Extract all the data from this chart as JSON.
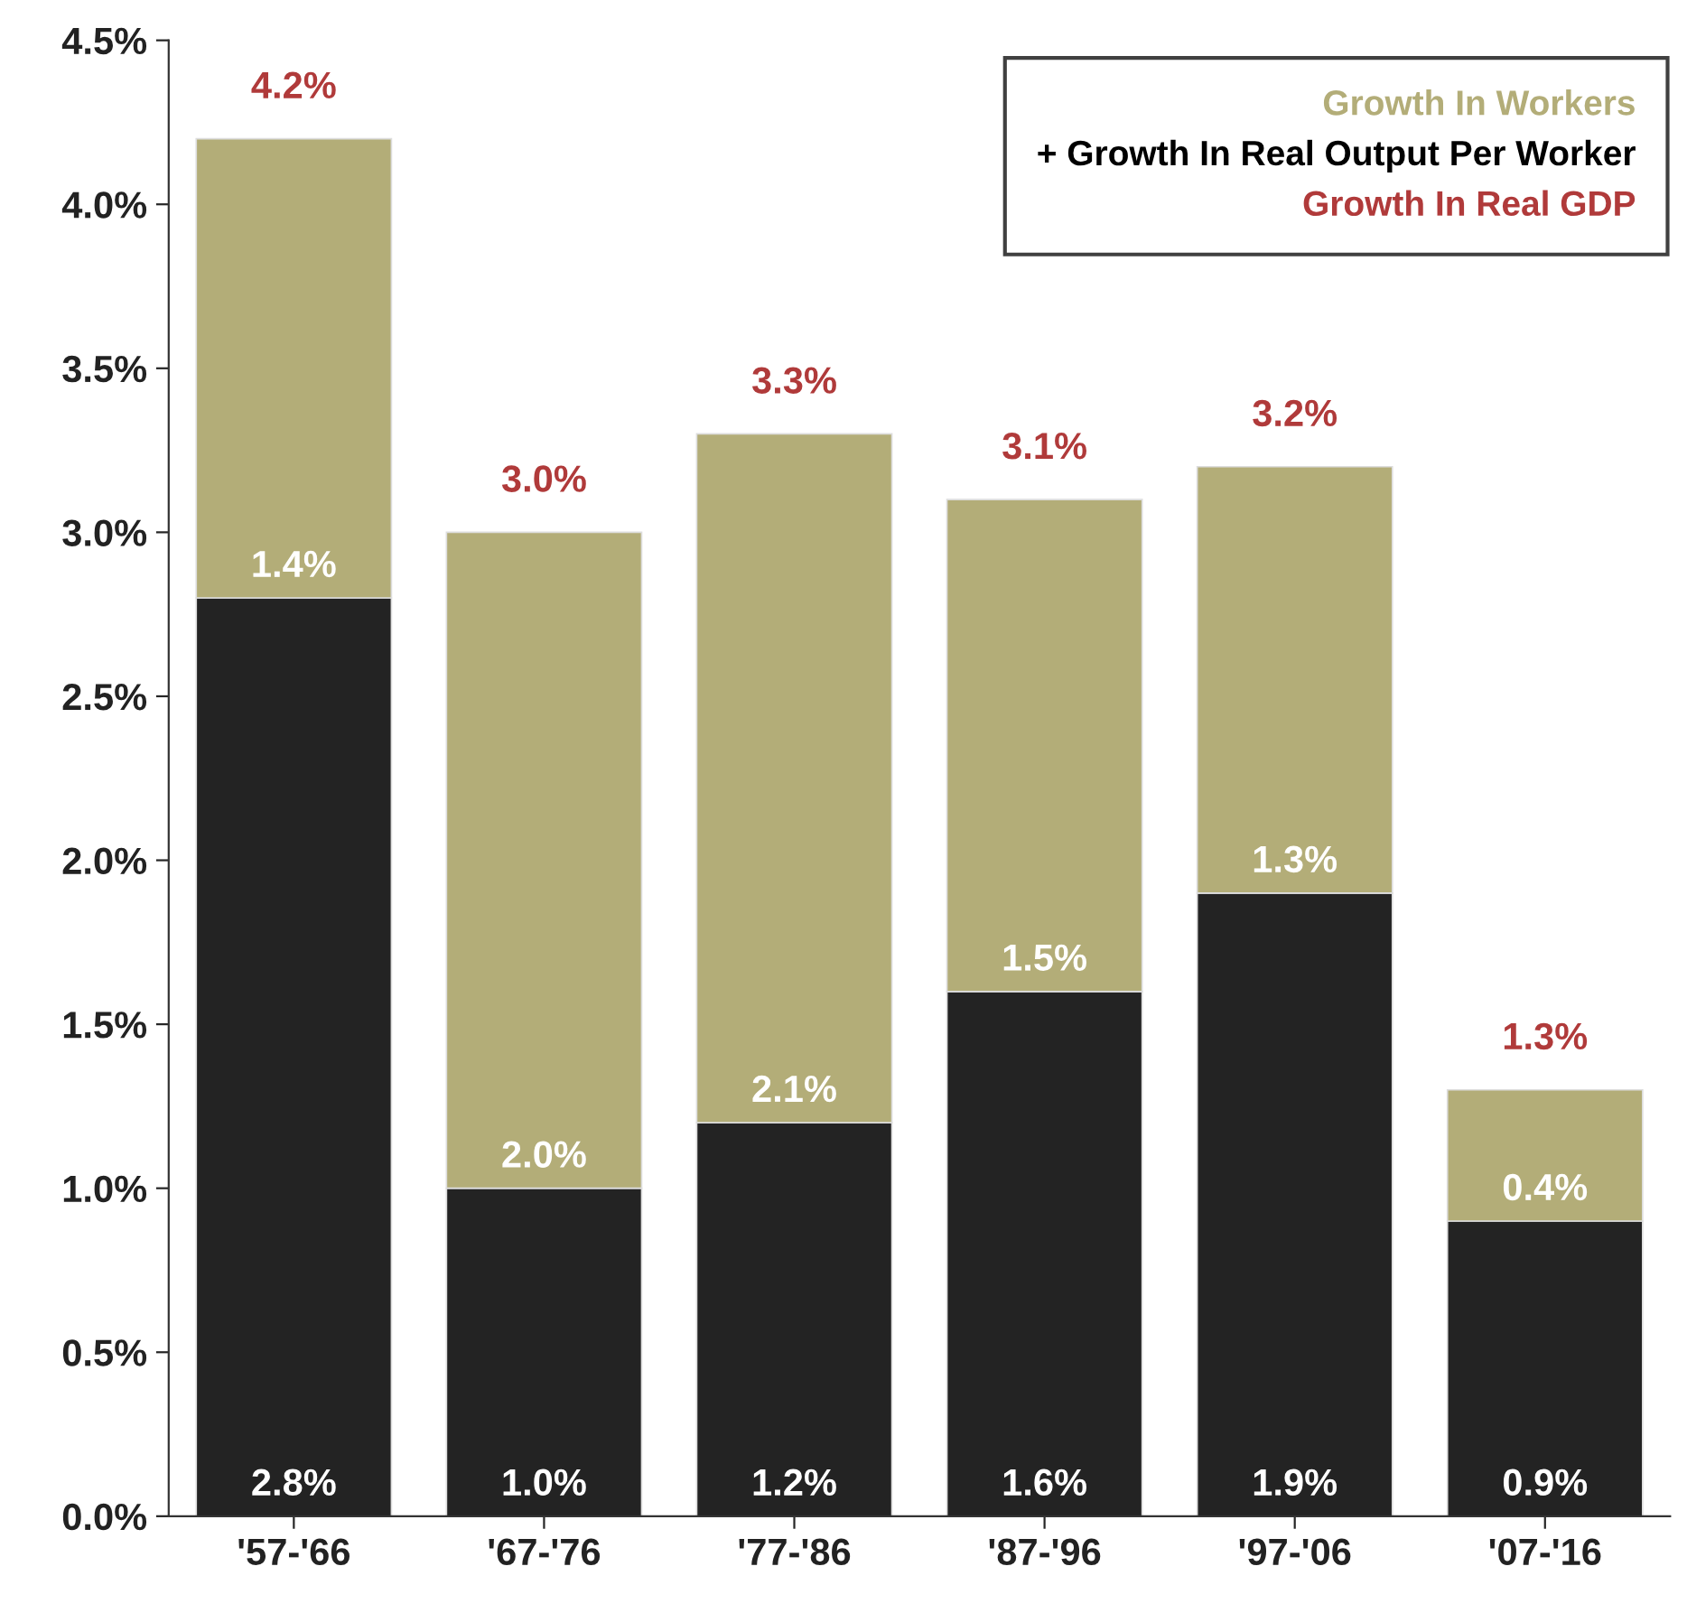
{
  "chart_data": {
    "type": "bar",
    "stacked": true,
    "categories": [
      "'57-'66",
      "'67-'76",
      "'77-'86",
      "'87-'96",
      "'97-'06",
      "'07-'16"
    ],
    "series": [
      {
        "name": "+ Growth In Real Output Per Worker",
        "color": "#232323",
        "values": [
          2.8,
          1.0,
          1.2,
          1.6,
          1.9,
          0.9
        ],
        "value_labels": [
          "2.8%",
          "1.0%",
          "1.2%",
          "1.6%",
          "1.9%",
          "0.9%"
        ]
      },
      {
        "name": "Growth In Workers",
        "color": "#b3ad78",
        "values": [
          1.4,
          2.0,
          2.1,
          1.5,
          1.3,
          0.4
        ],
        "value_labels": [
          "1.4%",
          "2.0%",
          "2.1%",
          "1.5%",
          "1.3%",
          "0.4%"
        ]
      }
    ],
    "totals": [
      "4.2%",
      "3.0%",
      "3.3%",
      "3.1%",
      "3.2%",
      "1.3%"
    ],
    "annotations": [
      "Growth In Real GDP"
    ],
    "ylim": [
      0,
      4.5
    ],
    "yticks": [
      {
        "value": 0,
        "label": "0.0%"
      },
      {
        "value": 0.5,
        "label": "0.5%"
      },
      {
        "value": 1,
        "label": "1.0%"
      },
      {
        "value": 1.5,
        "label": "1.5%"
      },
      {
        "value": 2,
        "label": "2.0%"
      },
      {
        "value": 2.5,
        "label": "2.5%"
      },
      {
        "value": 3,
        "label": "3.0%"
      },
      {
        "value": 3.5,
        "label": "3.5%"
      },
      {
        "value": 4,
        "label": "4.0%"
      },
      {
        "value": 4.5,
        "label": "4.5%"
      }
    ],
    "grid": false,
    "legend": "top right"
  }
}
